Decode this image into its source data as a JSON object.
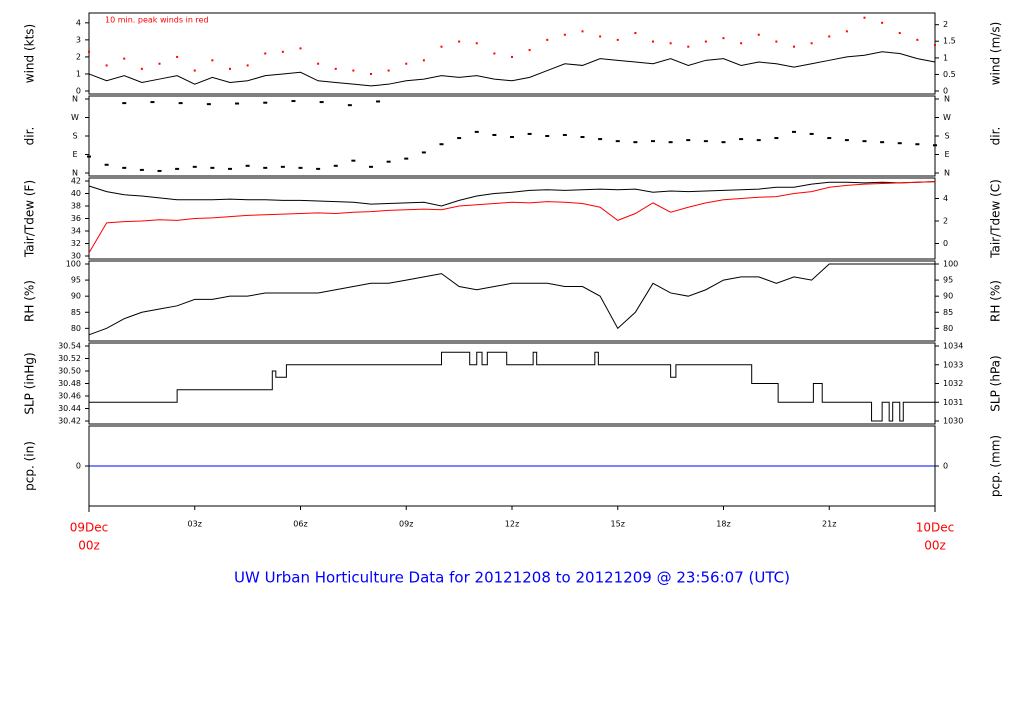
{
  "chart_data": [
    {
      "type": "line",
      "ylabel_left": "wind (kts)",
      "ylabel_right": "wind (m/s)",
      "annotation": "10 min. peak winds in red",
      "ylim": [
        0,
        4.4
      ],
      "yticks_left": [
        0,
        1,
        2,
        3,
        4
      ],
      "yticks_right": [
        {
          "label": "0",
          "value": 0
        },
        {
          "label": "0.5",
          "value": 0.97
        },
        {
          "label": "1",
          "value": 1.94
        },
        {
          "label": "1.5",
          "value": 2.92
        },
        {
          "label": "2",
          "value": 3.89
        }
      ],
      "x_hours": [
        0,
        0.5,
        1,
        1.5,
        2,
        2.5,
        3,
        3.5,
        4,
        4.5,
        5,
        5.5,
        6,
        6.5,
        7,
        7.5,
        8,
        8.5,
        9,
        9.5,
        10,
        10.5,
        11,
        11.5,
        12,
        12.5,
        13,
        13.5,
        14,
        14.5,
        15,
        15.5,
        16,
        16.5,
        17,
        17.5,
        18,
        18.5,
        19,
        19.5,
        20,
        20.5,
        21,
        21.5,
        22,
        22.5,
        23,
        23.5,
        24
      ],
      "series": [
        {
          "role": "mean",
          "color": "#000000",
          "values": [
            1.0,
            0.6,
            0.9,
            0.5,
            0.7,
            0.9,
            0.4,
            0.8,
            0.5,
            0.6,
            0.9,
            1.0,
            1.1,
            0.6,
            0.5,
            0.4,
            0.3,
            0.4,
            0.6,
            0.7,
            0.9,
            0.8,
            0.9,
            0.7,
            0.6,
            0.8,
            1.2,
            1.6,
            1.5,
            1.9,
            1.8,
            1.7,
            1.6,
            1.9,
            1.5,
            1.8,
            1.9,
            1.5,
            1.7,
            1.6,
            1.4,
            1.6,
            1.8,
            2.0,
            2.1,
            2.3,
            2.2,
            1.9,
            1.7
          ]
        },
        {
          "role": "peak",
          "color": "#ff0000",
          "values": [
            2.3,
            1.5,
            1.9,
            1.3,
            1.6,
            2.0,
            1.2,
            1.8,
            1.3,
            1.5,
            2.2,
            2.3,
            2.5,
            1.6,
            1.3,
            1.2,
            1.0,
            1.2,
            1.6,
            1.8,
            2.6,
            2.9,
            2.8,
            2.2,
            2.0,
            2.4,
            3.0,
            3.3,
            3.5,
            3.2,
            3.0,
            3.4,
            2.9,
            2.8,
            2.6,
            2.9,
            3.1,
            2.8,
            3.3,
            2.9,
            2.6,
            2.8,
            3.2,
            3.5,
            4.3,
            4.0,
            3.4,
            3.0,
            2.7
          ]
        }
      ]
    },
    {
      "type": "scatter",
      "ylabel_left": "dir.",
      "ylabel_right": "dir.",
      "yticks_left": [
        "N",
        "E",
        "S",
        "W",
        "N"
      ],
      "yticks_right": [
        "N",
        "E",
        "S",
        "W",
        "N"
      ],
      "ylim": [
        0,
        360
      ],
      "x_hours": [
        0,
        0.5,
        1,
        1.5,
        2,
        2.5,
        3,
        3.5,
        4,
        4.5,
        5,
        5.5,
        6,
        6.5,
        7,
        7.5,
        8,
        8.5,
        9,
        9.5,
        10,
        10.5,
        11,
        11.5,
        12,
        12.5,
        13,
        13.5,
        14,
        14.5,
        15,
        15.5,
        16,
        16.5,
        17,
        17.5,
        18,
        18.5,
        19,
        19.5,
        20,
        20.5,
        21,
        21.5,
        22,
        22.5,
        23,
        23.5,
        24
      ],
      "values": [
        80,
        40,
        25,
        15,
        10,
        20,
        30,
        25,
        20,
        35,
        25,
        30,
        25,
        20,
        35,
        60,
        30,
        55,
        70,
        100,
        140,
        170,
        200,
        185,
        175,
        190,
        180,
        185,
        175,
        165,
        155,
        150,
        155,
        150,
        160,
        155,
        150,
        165,
        160,
        170,
        200,
        190,
        170,
        160,
        155,
        150,
        145,
        140,
        135
      ],
      "ghost_top_values": [
        340,
        345,
        340,
        335,
        338,
        342,
        350,
        345,
        330,
        348
      ]
    },
    {
      "type": "line",
      "ylabel_left": "Tair/Tdew (F)",
      "ylabel_right": "Tair/Tdew (C)",
      "ylim": [
        30,
        42
      ],
      "yticks_left": [
        30,
        32,
        34,
        36,
        38,
        40,
        42
      ],
      "yticks_right": [
        {
          "label": "0",
          "value": 32
        },
        {
          "label": "2",
          "value": 35.6
        },
        {
          "label": "4",
          "value": 39.2
        }
      ],
      "x_hours": [
        0,
        0.5,
        1,
        1.5,
        2,
        2.5,
        3,
        3.5,
        4,
        4.5,
        5,
        5.5,
        6,
        6.5,
        7,
        7.5,
        8,
        8.5,
        9,
        9.5,
        10,
        10.5,
        11,
        11.5,
        12,
        12.5,
        13,
        13.5,
        14,
        14.5,
        15,
        15.5,
        16,
        16.5,
        17,
        17.5,
        18,
        18.5,
        19,
        19.5,
        20,
        20.5,
        21,
        21.5,
        22,
        22.5,
        23,
        23.5,
        24
      ],
      "series": [
        {
          "name_visible": false,
          "color": "#000000",
          "values": [
            41.2,
            40.3,
            39.8,
            39.6,
            39.3,
            39.0,
            39.0,
            39.0,
            39.1,
            39.0,
            39.0,
            38.9,
            38.9,
            38.8,
            38.7,
            38.6,
            38.3,
            38.4,
            38.5,
            38.6,
            38.0,
            38.9,
            39.6,
            40.0,
            40.2,
            40.5,
            40.6,
            40.5,
            40.6,
            40.7,
            40.6,
            40.7,
            40.2,
            40.4,
            40.3,
            40.4,
            40.5,
            40.6,
            40.7,
            41.0,
            41.0,
            41.5,
            41.8,
            41.8,
            41.7,
            41.8,
            41.7,
            41.8,
            41.9
          ]
        },
        {
          "name_visible": false,
          "color": "#ff0000",
          "values": [
            30.5,
            35.3,
            35.5,
            35.6,
            35.8,
            35.7,
            36.0,
            36.1,
            36.3,
            36.5,
            36.6,
            36.7,
            36.8,
            36.9,
            36.8,
            37.0,
            37.1,
            37.3,
            37.4,
            37.5,
            37.4,
            38.0,
            38.2,
            38.4,
            38.6,
            38.5,
            38.7,
            38.6,
            38.4,
            37.8,
            35.7,
            36.8,
            38.5,
            37.0,
            37.8,
            38.5,
            39.0,
            39.2,
            39.4,
            39.5,
            40.0,
            40.3,
            41.0,
            41.3,
            41.5,
            41.6,
            41.7,
            41.8,
            41.9
          ]
        }
      ]
    },
    {
      "type": "line",
      "ylabel_left": "RH (%)",
      "ylabel_right": "RH (%)",
      "ylim": [
        77,
        100
      ],
      "yticks_left": [
        80,
        85,
        90,
        95,
        100
      ],
      "yticks_right": [
        80,
        85,
        90,
        95,
        100
      ],
      "x_hours": [
        0,
        0.5,
        1,
        1.5,
        2,
        2.5,
        3,
        3.5,
        4,
        4.5,
        5,
        5.5,
        6,
        6.5,
        7,
        7.5,
        8,
        8.5,
        9,
        9.5,
        10,
        10.5,
        11,
        11.5,
        12,
        12.5,
        13,
        13.5,
        14,
        14.5,
        15,
        15.5,
        16,
        16.5,
        17,
        17.5,
        18,
        18.5,
        19,
        19.5,
        20,
        20.5,
        21,
        21.5,
        22,
        22.5,
        23,
        23.5,
        24
      ],
      "series": [
        {
          "color": "#000000",
          "values": [
            78,
            80,
            83,
            85,
            86,
            87,
            89,
            89,
            90,
            90,
            91,
            91,
            91,
            91,
            92,
            93,
            94,
            94,
            95,
            96,
            97,
            93,
            92,
            93,
            94,
            94,
            94,
            93,
            93,
            90,
            80,
            85,
            94,
            91,
            90,
            92,
            95,
            96,
            96,
            94,
            96,
            95,
            100,
            100,
            100,
            100,
            100,
            100,
            100
          ]
        }
      ]
    },
    {
      "type": "line",
      "ylabel_left": "SLP (inHg)",
      "ylabel_right": "SLP (hPa)",
      "ylim": [
        30.42,
        30.54
      ],
      "yticks_left": [
        "30.42",
        "30.44",
        "30.46",
        "30.48",
        "30.50",
        "30.52",
        "30.54"
      ],
      "yticks_right": [
        {
          "label": "1030",
          "value": 30.42
        },
        {
          "label": "1031",
          "value": 30.45
        },
        {
          "label": "1032",
          "value": 30.48
        },
        {
          "label": "1033",
          "value": 30.51
        },
        {
          "label": "1034",
          "value": 30.54
        }
      ],
      "x_hours": [
        0,
        2.5,
        2.5,
        5.2,
        5.2,
        5.3,
        5.3,
        5.6,
        5.6,
        10.0,
        10.0,
        10.8,
        10.8,
        11.0,
        11.0,
        11.15,
        11.15,
        11.3,
        11.3,
        11.85,
        11.85,
        12.6,
        12.6,
        12.7,
        12.7,
        14.35,
        14.35,
        14.45,
        14.45,
        16.5,
        16.5,
        16.65,
        16.65,
        18.8,
        18.8,
        19.55,
        19.55,
        20.55,
        20.55,
        20.8,
        20.8,
        22.2,
        22.2,
        22.5,
        22.5,
        22.7,
        22.7,
        22.8,
        22.8,
        23.0,
        23.0,
        23.1,
        23.1,
        23.5,
        23.5,
        24
      ],
      "values": [
        30.45,
        30.45,
        30.47,
        30.47,
        30.5,
        30.5,
        30.49,
        30.49,
        30.51,
        30.51,
        30.53,
        30.53,
        30.51,
        30.51,
        30.53,
        30.53,
        30.51,
        30.51,
        30.53,
        30.53,
        30.51,
        30.51,
        30.53,
        30.53,
        30.51,
        30.51,
        30.53,
        30.53,
        30.51,
        30.51,
        30.49,
        30.49,
        30.51,
        30.51,
        30.48,
        30.48,
        30.45,
        30.45,
        30.48,
        30.48,
        30.45,
        30.45,
        30.42,
        30.42,
        30.45,
        30.45,
        30.42,
        30.42,
        30.45,
        30.45,
        30.42,
        30.42,
        30.45,
        30.45,
        30.45,
        30.45
      ]
    },
    {
      "type": "line",
      "ylabel_left": "pcp. (in)",
      "ylabel_right": "pcp. (mm)",
      "ylim": [
        -1,
        1
      ],
      "yticks_left": [
        0
      ],
      "yticks_right": [
        0
      ],
      "x_hours": [
        0,
        24
      ],
      "values": [
        0,
        0
      ],
      "color": "#0000ff"
    }
  ],
  "xaxis": {
    "ticks": [
      {
        "label": "03z",
        "hour": 3
      },
      {
        "label": "06z",
        "hour": 6
      },
      {
        "label": "09z",
        "hour": 9
      },
      {
        "label": "12z",
        "hour": 12
      },
      {
        "label": "15z",
        "hour": 15
      },
      {
        "label": "18z",
        "hour": 18
      },
      {
        "label": "21z",
        "hour": 21
      }
    ],
    "start_label_1": "09Dec",
    "start_label_2": "00z",
    "end_label_1": "10Dec",
    "end_label_2": "00z"
  },
  "caption": "UW Urban Horticulture Data for 20121208  to  20121209 @ 23:56:07  (UTC)",
  "colors": {
    "caption": "#0000ff",
    "date_labels": "#ff0000",
    "annotation": "#ff0000"
  }
}
